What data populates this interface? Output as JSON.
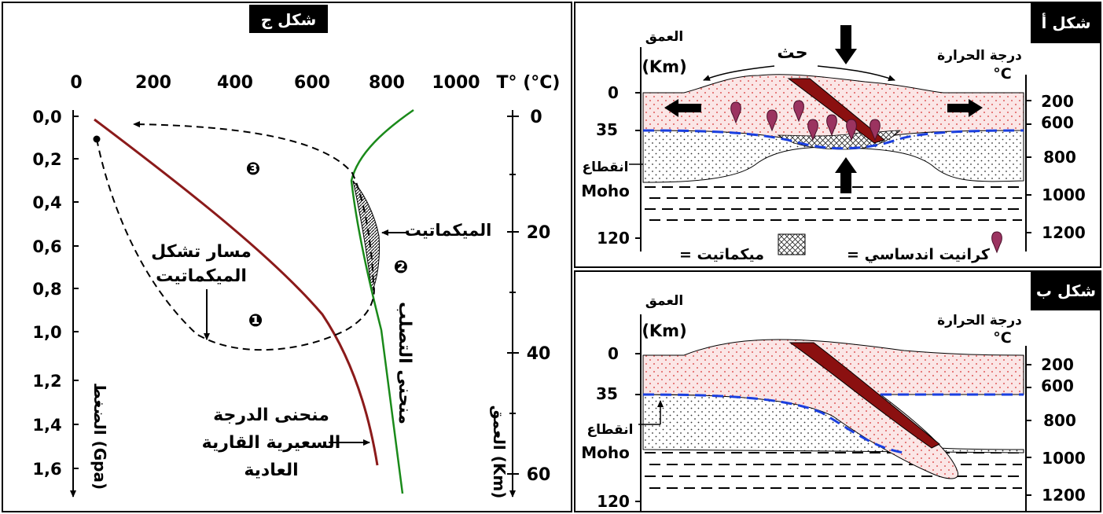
{
  "figure_c": {
    "title": "شكل ج",
    "temp_axis_label": "T° (°C)",
    "temp_ticks": [
      "0",
      "200",
      "400",
      "600",
      "800",
      "1000"
    ],
    "pressure_ticks": [
      "0,0",
      "0,2",
      "0,4",
      "0,6",
      "0,8",
      "1,0",
      "1,2",
      "1,4",
      "1,6"
    ],
    "pressure_label": "الضغط (Gpa)",
    "depth_ticks": [
      "0",
      "20",
      "40",
      "60"
    ],
    "depth_label": "العمق (Km)",
    "migmatite_label": "الميكماتيت",
    "path_label_line1": "مسار تشكل",
    "path_label_line2": "الميكماتيت",
    "solidus_label": "منحنى التصلب",
    "geotherm_label_line1": "منحنى الدرجة",
    "geotherm_label_line2": "السعيرية القارية",
    "geotherm_label_line3": "العادية",
    "markers": [
      "❶",
      "❷",
      "❸"
    ]
  },
  "figure_a": {
    "title": "شكل أ",
    "depth_label_line1": "العمق",
    "depth_label_line2": "(Km)",
    "temp_label_line1": "درجة الحرارة",
    "temp_label_line2": "°C",
    "erosion_label": "حث",
    "depth_ticks": [
      "0",
      "35",
      "120"
    ],
    "temp_ticks": [
      "200",
      "600",
      "800",
      "1000",
      "1200"
    ],
    "moho_line1": "انقطاع",
    "moho_line2": "Moho",
    "legend_granite": "= كرانيت اندساسي",
    "legend_migmatite": "= ميكماتيت"
  },
  "figure_b": {
    "title": "شكل ب",
    "depth_label_line1": "العمق",
    "depth_label_line2": "(Km)",
    "temp_label_line1": "درجة الحرارة",
    "temp_label_line2": "°C",
    "depth_ticks": [
      "0",
      "35",
      "120"
    ],
    "temp_ticks": [
      "200",
      "600",
      "800",
      "1000",
      "1200"
    ],
    "moho_line1": "انقطاع",
    "moho_line2": "Moho"
  },
  "colors": {
    "geotherm": "#8b1a1a",
    "solidus": "#1a8a1a",
    "moho_dash": "#1a3fe0",
    "crust_fill": "#fbe6e6",
    "crust_dots": "#e05a5a",
    "granite": "#9b3360",
    "thrust_sheet": "#8b1010"
  }
}
